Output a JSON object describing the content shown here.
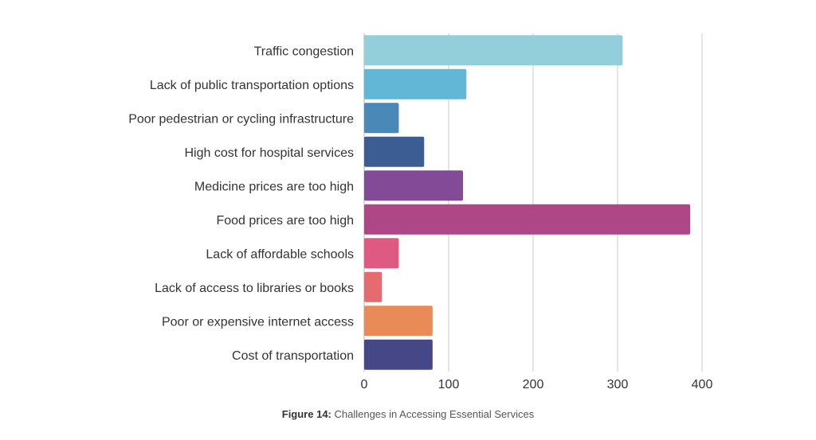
{
  "caption": {
    "prefix": "Figure 14:",
    "text": " Challenges in Accessing Essential Services"
  },
  "chart_data": {
    "type": "bar",
    "orientation": "horizontal",
    "categories": [
      "Traffic congestion",
      "Lack of public transportation options",
      "Poor pedestrian or cycling infrastructure",
      "High cost for hospital services",
      "Medicine prices are too high",
      "Food prices are too high",
      "Lack of affordable schools",
      "Lack of access to libraries or books",
      "Poor or expensive internet access",
      "Cost of transportation"
    ],
    "values": [
      306,
      121,
      41,
      71,
      117,
      386,
      41,
      21,
      81,
      81
    ],
    "colors": [
      "#92cfda",
      "#62b6d6",
      "#4a88b8",
      "#3c5c94",
      "#834a98",
      "#ae4786",
      "#df5a83",
      "#e56b6f",
      "#e98b56",
      "#464787"
    ],
    "xlim": [
      0,
      400
    ],
    "xticks": [
      "0",
      "100",
      "200",
      "300",
      "400"
    ],
    "grid": true
  }
}
